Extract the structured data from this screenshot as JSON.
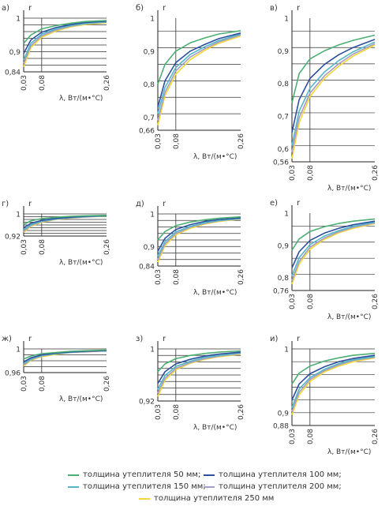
{
  "series_names": [
    "толщина утеплителя 50 мм;",
    "толщина утеплителя 100 мм;",
    "толщина утеплителя 150 мм;",
    "толщина утеплителя 200 мм;",
    "толщина утеплителя 250 мм"
  ],
  "series_colors": [
    "#4caf74",
    "#2e4f9e",
    "#54b7c6",
    "#a69cc4",
    "#f3d736"
  ],
  "chart_data": [
    {
      "type": "line",
      "panel_label": "а)",
      "ylabel": "r",
      "xlabel": "λ, Вт/(м•°С)",
      "x_ticks": [
        "0,03",
        "0,08",
        "0,26"
      ],
      "y_ticks": [
        "0,84",
        "0,9",
        "1"
      ],
      "ylim": [
        0.84,
        1.0
      ],
      "xlim": [
        0.03,
        0.26
      ],
      "x": [
        0.03,
        0.05,
        0.08,
        0.12,
        0.16,
        0.2,
        0.26
      ],
      "series": [
        {
          "values": [
            0.925,
            0.95,
            0.968,
            0.978,
            0.985,
            0.99,
            0.993
          ]
        },
        {
          "values": [
            0.895,
            0.935,
            0.958,
            0.972,
            0.981,
            0.987,
            0.991
          ]
        },
        {
          "values": [
            0.875,
            0.925,
            0.952,
            0.968,
            0.978,
            0.984,
            0.989
          ]
        },
        {
          "values": [
            0.865,
            0.918,
            0.947,
            0.965,
            0.976,
            0.983,
            0.988
          ]
        },
        {
          "values": [
            0.855,
            0.912,
            0.943,
            0.962,
            0.974,
            0.981,
            0.986
          ]
        }
      ]
    },
    {
      "type": "line",
      "panel_label": "б)",
      "ylabel": "r",
      "xlabel": "λ, Вт/(м•°С)",
      "x_ticks": [
        "0,03",
        "0,08",
        "0,26"
      ],
      "y_ticks": [
        "0,66",
        "0,7",
        "0,8",
        "0,9",
        "1"
      ],
      "ylim": [
        0.66,
        1.0
      ],
      "xlim": [
        0.03,
        0.26
      ],
      "x": [
        0.03,
        0.05,
        0.08,
        0.12,
        0.16,
        0.2,
        0.26
      ],
      "series": [
        {
          "values": [
            0.8,
            0.86,
            0.9,
            0.925,
            0.94,
            0.952,
            0.962
          ]
        },
        {
          "values": [
            0.73,
            0.81,
            0.865,
            0.9,
            0.92,
            0.938,
            0.955
          ]
        },
        {
          "values": [
            0.71,
            0.79,
            0.85,
            0.89,
            0.913,
            0.932,
            0.952
          ]
        },
        {
          "values": [
            0.69,
            0.775,
            0.84,
            0.882,
            0.907,
            0.928,
            0.949
          ]
        },
        {
          "values": [
            0.675,
            0.765,
            0.83,
            0.874,
            0.902,
            0.924,
            0.946
          ]
        }
      ]
    },
    {
      "type": "line",
      "panel_label": "в)",
      "ylabel": "r",
      "xlabel": "λ, Вт/(м•°С)",
      "x_ticks": [
        "0,03",
        "0,08",
        "0,26"
      ],
      "y_ticks": [
        "0,56",
        "0,6",
        "0,7",
        "0,8",
        "0,9",
        "1"
      ],
      "ylim": [
        0.56,
        1.0
      ],
      "xlim": [
        0.03,
        0.26
      ],
      "x": [
        0.03,
        0.05,
        0.08,
        0.12,
        0.16,
        0.2,
        0.26
      ],
      "series": [
        {
          "values": [
            0.74,
            0.83,
            0.875,
            0.9,
            0.918,
            0.932,
            0.948
          ]
        },
        {
          "values": [
            0.65,
            0.75,
            0.815,
            0.858,
            0.888,
            0.91,
            0.935
          ]
        },
        {
          "values": [
            0.61,
            0.715,
            0.785,
            0.835,
            0.87,
            0.897,
            0.927
          ]
        },
        {
          "values": [
            0.59,
            0.695,
            0.77,
            0.823,
            0.86,
            0.89,
            0.922
          ]
        },
        {
          "values": [
            0.57,
            0.68,
            0.76,
            0.815,
            0.853,
            0.884,
            0.918
          ]
        }
      ]
    },
    {
      "type": "line",
      "panel_label": "г)",
      "ylabel": "r",
      "xlabel": "λ, Вт/(м•°С)",
      "x_ticks": [
        "0,03",
        "0,08",
        "0,26"
      ],
      "y_ticks": [
        "0,92",
        "1"
      ],
      "ylim": [
        0.92,
        1.0
      ],
      "xlim": [
        0.03,
        0.26
      ],
      "x": [
        0.03,
        0.05,
        0.08,
        0.12,
        0.16,
        0.2,
        0.26
      ],
      "series": [
        {
          "values": [
            0.962,
            0.975,
            0.983,
            0.988,
            0.991,
            0.993,
            0.995
          ]
        },
        {
          "values": [
            0.95,
            0.966,
            0.977,
            0.984,
            0.988,
            0.991,
            0.994
          ]
        },
        {
          "values": [
            0.942,
            0.961,
            0.974,
            0.982,
            0.987,
            0.99,
            0.993
          ]
        },
        {
          "values": [
            0.937,
            0.958,
            0.972,
            0.981,
            0.986,
            0.989,
            0.993
          ]
        },
        {
          "values": [
            0.933,
            0.955,
            0.97,
            0.98,
            0.985,
            0.989,
            0.992
          ]
        }
      ]
    },
    {
      "type": "line",
      "panel_label": "д)",
      "ylabel": "r",
      "xlabel": "λ, Вт/(м•°С)",
      "x_ticks": [
        "0,03",
        "0,08",
        "0,26"
      ],
      "y_ticks": [
        "0,84",
        "0,9",
        "1"
      ],
      "ylim": [
        0.84,
        1.0
      ],
      "xlim": [
        0.03,
        0.26
      ],
      "x": [
        0.03,
        0.05,
        0.08,
        0.12,
        0.16,
        0.2,
        0.26
      ],
      "series": [
        {
          "values": [
            0.92,
            0.946,
            0.964,
            0.975,
            0.982,
            0.987,
            0.991
          ]
        },
        {
          "values": [
            0.885,
            0.925,
            0.952,
            0.967,
            0.977,
            0.983,
            0.988
          ]
        },
        {
          "values": [
            0.87,
            0.915,
            0.945,
            0.962,
            0.973,
            0.98,
            0.986
          ]
        },
        {
          "values": [
            0.86,
            0.908,
            0.94,
            0.959,
            0.971,
            0.979,
            0.985
          ]
        },
        {
          "values": [
            0.852,
            0.903,
            0.936,
            0.956,
            0.969,
            0.977,
            0.984
          ]
        }
      ]
    },
    {
      "type": "line",
      "panel_label": "е)",
      "ylabel": "r",
      "xlabel": "λ, Вт/(м•°С)",
      "x_ticks": [
        "0,03",
        "0,08",
        "0,26"
      ],
      "y_ticks": [
        "0,76",
        "0,8",
        "0,9",
        "1"
      ],
      "ylim": [
        0.76,
        1.0
      ],
      "xlim": [
        0.03,
        0.26
      ],
      "x": [
        0.03,
        0.05,
        0.08,
        0.12,
        0.16,
        0.2,
        0.26
      ],
      "series": [
        {
          "values": [
            0.885,
            0.92,
            0.943,
            0.958,
            0.968,
            0.975,
            0.982
          ]
        },
        {
          "values": [
            0.83,
            0.88,
            0.915,
            0.938,
            0.953,
            0.964,
            0.975
          ]
        },
        {
          "values": [
            0.805,
            0.862,
            0.902,
            0.929,
            0.946,
            0.959,
            0.972
          ]
        },
        {
          "values": [
            0.79,
            0.85,
            0.894,
            0.923,
            0.942,
            0.956,
            0.97
          ]
        },
        {
          "values": [
            0.78,
            0.842,
            0.888,
            0.919,
            0.939,
            0.953,
            0.968
          ]
        }
      ]
    },
    {
      "type": "line",
      "panel_label": "ж)",
      "ylabel": "r",
      "xlabel": "λ, Вт/(м•°С)",
      "x_ticks": [
        "0,03",
        "0,08",
        "0,26"
      ],
      "y_ticks": [
        "0,96",
        "1"
      ],
      "ylim": [
        0.96,
        1.0
      ],
      "xlim": [
        0.03,
        0.26
      ],
      "x": [
        0.03,
        0.05,
        0.08,
        0.12,
        0.16,
        0.2,
        0.26
      ],
      "series": [
        {
          "values": [
            0.983,
            0.988,
            0.992,
            0.994,
            0.996,
            0.997,
            0.998
          ]
        },
        {
          "values": [
            0.978,
            0.985,
            0.99,
            0.993,
            0.995,
            0.996,
            0.997
          ]
        },
        {
          "values": [
            0.975,
            0.983,
            0.989,
            0.992,
            0.994,
            0.996,
            0.997
          ]
        },
        {
          "values": [
            0.973,
            0.982,
            0.988,
            0.992,
            0.994,
            0.995,
            0.997
          ]
        },
        {
          "values": [
            0.971,
            0.981,
            0.987,
            0.991,
            0.994,
            0.995,
            0.997
          ]
        }
      ]
    },
    {
      "type": "line",
      "panel_label": "з)",
      "ylabel": "r",
      "xlabel": "λ, Вт/(м•°С)",
      "x_ticks": [
        "0,03",
        "0,08",
        "0,26"
      ],
      "y_ticks": [
        "0,92",
        "1"
      ],
      "ylim": [
        0.92,
        1.0
      ],
      "xlim": [
        0.03,
        0.26
      ],
      "x": [
        0.03,
        0.05,
        0.08,
        0.12,
        0.16,
        0.2,
        0.26
      ],
      "series": [
        {
          "values": [
            0.965,
            0.977,
            0.985,
            0.99,
            0.993,
            0.995,
            0.997
          ]
        },
        {
          "values": [
            0.947,
            0.965,
            0.977,
            0.984,
            0.989,
            0.992,
            0.995
          ]
        },
        {
          "values": [
            0.938,
            0.959,
            0.973,
            0.981,
            0.987,
            0.99,
            0.994
          ]
        },
        {
          "values": [
            0.932,
            0.955,
            0.97,
            0.979,
            0.985,
            0.989,
            0.993
          ]
        },
        {
          "values": [
            0.927,
            0.952,
            0.968,
            0.978,
            0.984,
            0.988,
            0.992
          ]
        }
      ]
    },
    {
      "type": "line",
      "panel_label": "и)",
      "ylabel": "r",
      "xlabel": "λ, Вт/(м•°С)",
      "x_ticks": [
        "0,03",
        "0,08",
        "0,26"
      ],
      "y_ticks": [
        "0,88",
        "0,9",
        "1"
      ],
      "ylim": [
        0.88,
        1.0
      ],
      "xlim": [
        0.03,
        0.26
      ],
      "x": [
        0.03,
        0.05,
        0.08,
        0.12,
        0.16,
        0.2,
        0.26
      ],
      "series": [
        {
          "values": [
            0.945,
            0.962,
            0.973,
            0.981,
            0.986,
            0.99,
            0.993
          ]
        },
        {
          "values": [
            0.92,
            0.945,
            0.961,
            0.972,
            0.98,
            0.985,
            0.99
          ]
        },
        {
          "values": [
            0.908,
            0.937,
            0.955,
            0.968,
            0.977,
            0.983,
            0.988
          ]
        },
        {
          "values": [
            0.902,
            0.932,
            0.952,
            0.966,
            0.975,
            0.982,
            0.987
          ]
        },
        {
          "values": [
            0.897,
            0.928,
            0.949,
            0.964,
            0.973,
            0.98,
            0.986
          ]
        }
      ]
    }
  ]
}
